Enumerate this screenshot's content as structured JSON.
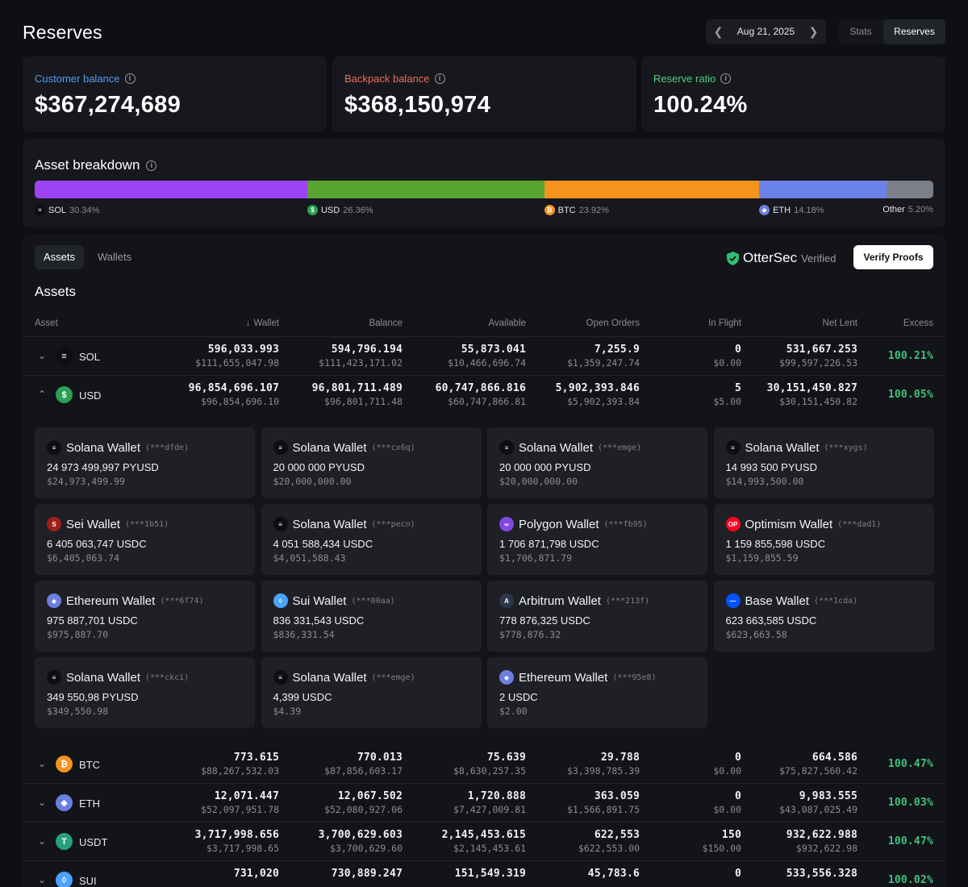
{
  "header": {
    "title": "Reserves",
    "date": "Aug 21, 2025",
    "view_tabs": [
      "Stats",
      "Reserves"
    ]
  },
  "summary": {
    "customer": {
      "label": "Customer balance",
      "value": "$367,274,689",
      "color": "#4f9cf5"
    },
    "backpack": {
      "label": "Backpack balance",
      "value": "$368,150,974",
      "color": "#f06a5d"
    },
    "ratio": {
      "label": "Reserve ratio",
      "value": "100.24%",
      "color": "#4fcf7f"
    }
  },
  "breakdown": {
    "title": "Asset breakdown",
    "segments": [
      {
        "name": "SOL",
        "pct_label": "30.34%",
        "pct": 30.34,
        "color": "#9b44f6",
        "icon": "solana-icon"
      },
      {
        "name": "USD",
        "pct_label": "26.36%",
        "pct": 26.36,
        "color": "#59a431",
        "icon": "dollar-icon"
      },
      {
        "name": "BTC",
        "pct_label": "23.92%",
        "pct": 23.92,
        "color": "#f6931c",
        "icon": "bitcoin-icon"
      },
      {
        "name": "ETH",
        "pct_label": "14.18%",
        "pct": 14.18,
        "color": "#6b82ea",
        "icon": "ethereum-icon"
      },
      {
        "name": "Other",
        "pct_label": "5.20%",
        "pct": 5.2,
        "color": "#7c7f8a",
        "icon": ""
      }
    ]
  },
  "panel": {
    "tabs": [
      "Assets",
      "Wallets"
    ],
    "auditor": "OtterSec",
    "verified": "Verified",
    "verify_button": "Verify Proofs",
    "section_title": "Assets",
    "columns": [
      "Asset",
      "Wallet",
      "Balance",
      "Available",
      "Open Orders",
      "In Flight",
      "Net Lent",
      "Excess"
    ]
  },
  "assets": [
    {
      "sym": "SOL",
      "color": "#0d0e12",
      "icon": "≡",
      "wallet": [
        "596,033.993",
        "$111,655,047.98"
      ],
      "balance": [
        "594,796.194",
        "$111,423,171.02"
      ],
      "available": [
        "55,873.041",
        "$10,466,696.74"
      ],
      "open_orders": [
        "7,255.9",
        "$1,359,247.74"
      ],
      "in_flight": [
        "0",
        "$0.00"
      ],
      "net_lent": [
        "531,667.253",
        "$99,597,226.53"
      ],
      "excess": "100.21%"
    },
    {
      "sym": "USD",
      "color": "#2aa052",
      "icon": "$",
      "wallet": [
        "96,854,696.107",
        "$96,854,696.10"
      ],
      "balance": [
        "96,801,711.489",
        "$96,801,711.48"
      ],
      "available": [
        "60,747,866.816",
        "$60,747,866.81"
      ],
      "open_orders": [
        "5,902,393.846",
        "$5,902,393.84"
      ],
      "in_flight": [
        "5",
        "$5.00"
      ],
      "net_lent": [
        "30,151,450.827",
        "$30,151,450.82"
      ],
      "excess": "100.05%"
    },
    {
      "sym": "BTC",
      "color": "#f6931c",
      "icon": "₿",
      "wallet": [
        "773.615",
        "$88,267,532.03"
      ],
      "balance": [
        "770.013",
        "$87,856,603.17"
      ],
      "available": [
        "75.639",
        "$8,630,257.35"
      ],
      "open_orders": [
        "29.788",
        "$3,398,785.39"
      ],
      "in_flight": [
        "0",
        "$0.00"
      ],
      "net_lent": [
        "664.586",
        "$75,827,560.42"
      ],
      "excess": "100.47%"
    },
    {
      "sym": "ETH",
      "color": "#6b7fe0",
      "icon": "◆",
      "wallet": [
        "12,071.447",
        "$52,097,951.78"
      ],
      "balance": [
        "12,067.502",
        "$52,080,927.06"
      ],
      "available": [
        "1,720.888",
        "$7,427,009.81"
      ],
      "open_orders": [
        "363.059",
        "$1,566,891.75"
      ],
      "in_flight": [
        "0",
        "$0.00"
      ],
      "net_lent": [
        "9,983.555",
        "$43,087,025.49"
      ],
      "excess": "100.03%"
    },
    {
      "sym": "USDT",
      "color": "#26a17b",
      "icon": "T",
      "wallet": [
        "3,717,998.656",
        "$3,717,998.65"
      ],
      "balance": [
        "3,700,629.603",
        "$3,700,629.60"
      ],
      "available": [
        "2,145,453.615",
        "$2,145,453.61"
      ],
      "open_orders": [
        "622,553",
        "$622,553.00"
      ],
      "in_flight": [
        "150",
        "$150.00"
      ],
      "net_lent": [
        "932,622.988",
        "$932,622.98"
      ],
      "excess": "100.47%"
    },
    {
      "sym": "SUI",
      "color": "#4ca3ff",
      "icon": "◊",
      "wallet": [
        "731,020",
        ""
      ],
      "balance": [
        "730,889.247",
        ""
      ],
      "available": [
        "151,549.319",
        ""
      ],
      "open_orders": [
        "45,783.6",
        ""
      ],
      "in_flight": [
        "0",
        ""
      ],
      "net_lent": [
        "533,556.328",
        ""
      ],
      "excess": "100.02%"
    }
  ],
  "usd_wallets": [
    {
      "name": "Solana Wallet",
      "id": "(***dfde)",
      "amount": "24 973 499,997 PYUSD",
      "usd": "$24,973,499.99",
      "icon": "solana-icon",
      "color": "#0d0e12",
      "glyph": "≡"
    },
    {
      "name": "Solana Wallet",
      "id": "(***cx6q)",
      "amount": "20 000 000 PYUSD",
      "usd": "$20,000,000.00",
      "icon": "solana-icon",
      "color": "#0d0e12",
      "glyph": "≡"
    },
    {
      "name": "Solana Wallet",
      "id": "(***emge)",
      "amount": "20 000 000 PYUSD",
      "usd": "$20,000,000.00",
      "icon": "solana-icon",
      "color": "#0d0e12",
      "glyph": "≡"
    },
    {
      "name": "Solana Wallet",
      "id": "(***xygs)",
      "amount": "14 993 500 PYUSD",
      "usd": "$14,993,500.00",
      "icon": "solana-icon",
      "color": "#0d0e12",
      "glyph": "≡"
    },
    {
      "name": "Sei Wallet",
      "id": "(***1b51)",
      "amount": "6 405 063,747 USDC",
      "usd": "$6,405,063.74",
      "icon": "sei-icon",
      "color": "#9e1f19",
      "glyph": "S"
    },
    {
      "name": "Solana Wallet",
      "id": "(***pecn)",
      "amount": "4 051 588,434 USDC",
      "usd": "$4,051,588.43",
      "icon": "solana-icon",
      "color": "#0d0e12",
      "glyph": "≡"
    },
    {
      "name": "Polygon Wallet",
      "id": "(***fb95)",
      "amount": "1 706 871,798 USDC",
      "usd": "$1,706,871.79",
      "icon": "polygon-icon",
      "color": "#8247e5",
      "glyph": "∞"
    },
    {
      "name": "Optimism Wallet",
      "id": "(***dad1)",
      "amount": "1 159 855,598 USDC",
      "usd": "$1,159,855.59",
      "icon": "optimism-icon",
      "color": "#ff0420",
      "glyph": "OP"
    },
    {
      "name": "Ethereum Wallet",
      "id": "(***6f74)",
      "amount": "975 887,701 USDC",
      "usd": "$975,887.70",
      "icon": "ethereum-icon",
      "color": "#6b7fe0",
      "glyph": "◆"
    },
    {
      "name": "Sui Wallet",
      "id": "(***00aa)",
      "amount": "836 331,543 USDC",
      "usd": "$836,331.54",
      "icon": "sui-icon",
      "color": "#4ca3ff",
      "glyph": "◊"
    },
    {
      "name": "Arbitrum Wallet",
      "id": "(***213f)",
      "amount": "778 876,325 USDC",
      "usd": "$778,876.32",
      "icon": "arbitrum-icon",
      "color": "#2d374b",
      "glyph": "A"
    },
    {
      "name": "Base Wallet",
      "id": "(***1cda)",
      "amount": "623 663,585 USDC",
      "usd": "$623,663.58",
      "icon": "base-icon",
      "color": "#0052ff",
      "glyph": "—"
    },
    {
      "name": "Solana Wallet",
      "id": "(***ckci)",
      "amount": "349 550,98 PYUSD",
      "usd": "$349,550.98",
      "icon": "solana-icon",
      "color": "#0d0e12",
      "glyph": "≡"
    },
    {
      "name": "Solana Wallet",
      "id": "(***emge)",
      "amount": "4,399 USDC",
      "usd": "$4.39",
      "icon": "solana-icon",
      "color": "#0d0e12",
      "glyph": "≡"
    },
    {
      "name": "Ethereum Wallet",
      "id": "(***95e8)",
      "amount": "2 USDC",
      "usd": "$2.00",
      "icon": "ethereum-icon",
      "color": "#6b7fe0",
      "glyph": "◆"
    }
  ]
}
